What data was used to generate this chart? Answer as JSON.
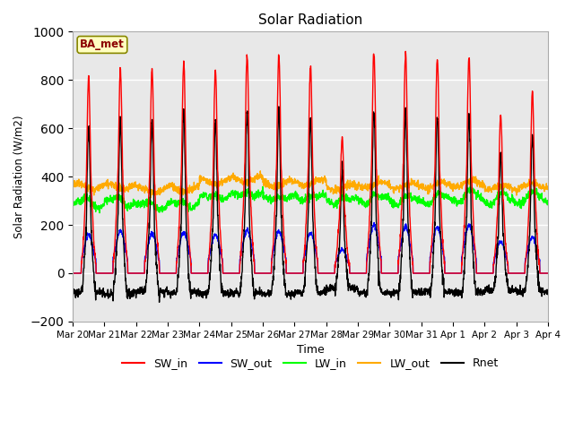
{
  "title": "Solar Radiation",
  "xlabel": "Time",
  "ylabel": "Solar Radiation (W/m2)",
  "ylim": [
    -200,
    1000
  ],
  "bg_color": "#e8e8e8",
  "grid_color": "white",
  "station_label": "BA_met",
  "x_tick_labels": [
    "Mar 20",
    "Mar 21",
    "Mar 22",
    "Mar 23",
    "Mar 24",
    "Mar 25",
    "Mar 26",
    "Mar 27",
    "Mar 28",
    "Mar 29",
    "Mar 30",
    "Mar 31",
    "Apr 1",
    "Apr 2",
    "Apr 3",
    "Apr 4"
  ],
  "colors": {
    "SW_in": "#ff0000",
    "SW_out": "#0000ff",
    "LW_in": "#00ff00",
    "LW_out": "#ffaa00",
    "Rnet": "#000000"
  },
  "lw": 1.0,
  "n_days": 15,
  "pts_per_day": 144,
  "peak_SW_in": [
    810,
    850,
    840,
    870,
    840,
    900,
    900,
    860,
    560,
    920,
    910,
    890,
    900,
    650,
    750
  ],
  "peak_SW_out": [
    160,
    175,
    165,
    170,
    160,
    180,
    175,
    165,
    100,
    200,
    195,
    190,
    200,
    130,
    150
  ],
  "lw_in_base": [
    285,
    290,
    275,
    280,
    310,
    320,
    305,
    310,
    295,
    300,
    295,
    300,
    310,
    300,
    305
  ],
  "lw_out_base": [
    360,
    360,
    345,
    350,
    380,
    390,
    370,
    375,
    355,
    365,
    360,
    365,
    370,
    355,
    360
  ],
  "rnet_night": [
    -80,
    -85,
    -75,
    -80,
    -85,
    -80,
    -85,
    -80,
    -60,
    -80,
    -80,
    -75,
    -80,
    -70,
    -75
  ]
}
